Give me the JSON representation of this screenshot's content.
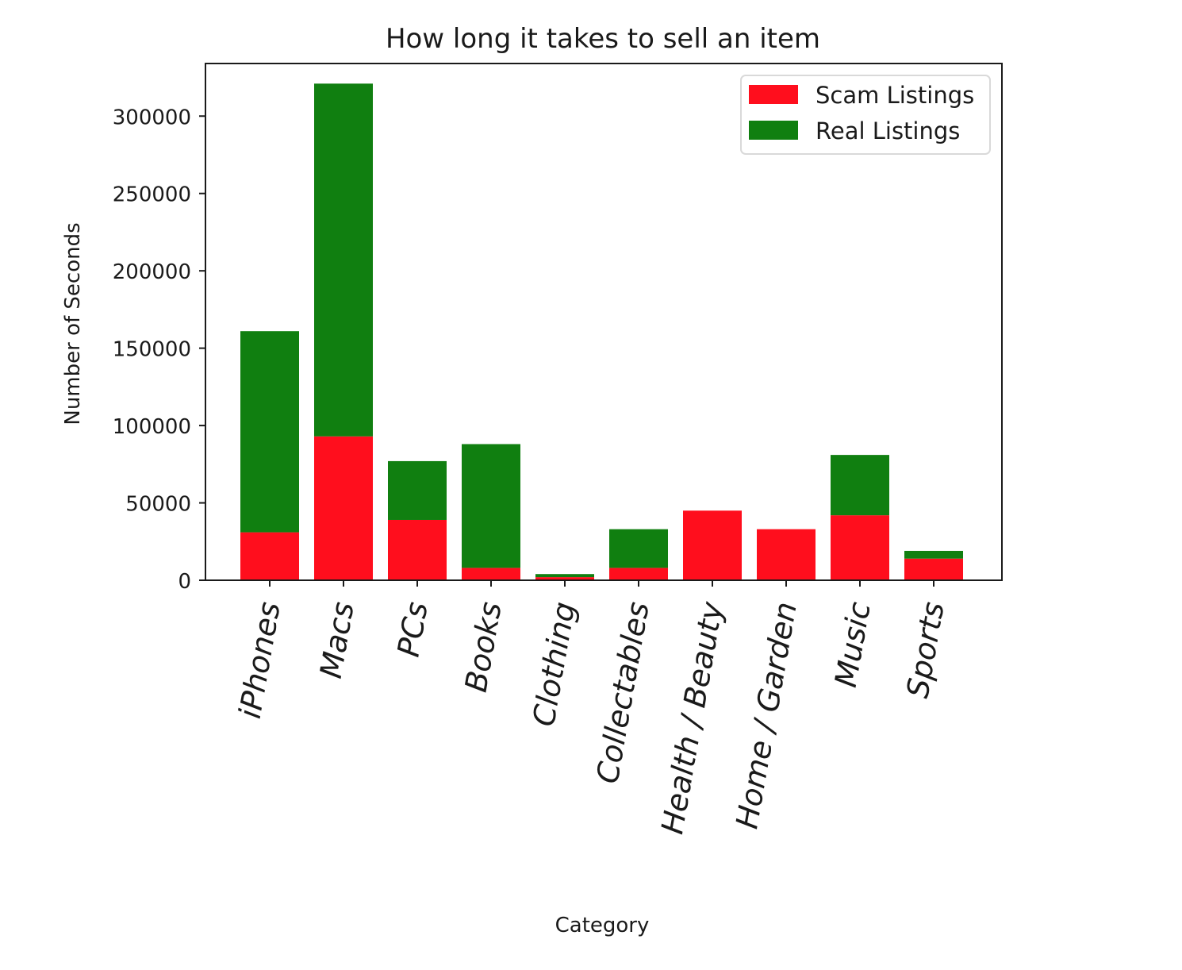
{
  "chart_data": {
    "type": "bar",
    "stacked": true,
    "title": "How long it takes to sell an item",
    "xlabel": "Category",
    "ylabel": "Number of Seconds",
    "ylim": [
      0,
      334000
    ],
    "yticks": [
      0,
      50000,
      100000,
      150000,
      200000,
      250000,
      300000
    ],
    "categories": [
      "iPhones",
      "Macs",
      "PCs",
      "Books",
      "Clothing",
      "Collectables",
      "Health / Beauty",
      "Home / Garden",
      "Music",
      "Sports"
    ],
    "series": [
      {
        "name": "Scam Listings",
        "color": "#ff0e1d",
        "values": [
          31000,
          93000,
          39000,
          8000,
          2000,
          8000,
          45000,
          33000,
          42000,
          14000
        ]
      },
      {
        "name": "Real Listings",
        "color": "#107f10",
        "values": [
          130000,
          228000,
          38000,
          80000,
          2000,
          25000,
          0,
          0,
          39000,
          5000
        ]
      }
    ],
    "legend_position": "top-right",
    "grid": false
  }
}
